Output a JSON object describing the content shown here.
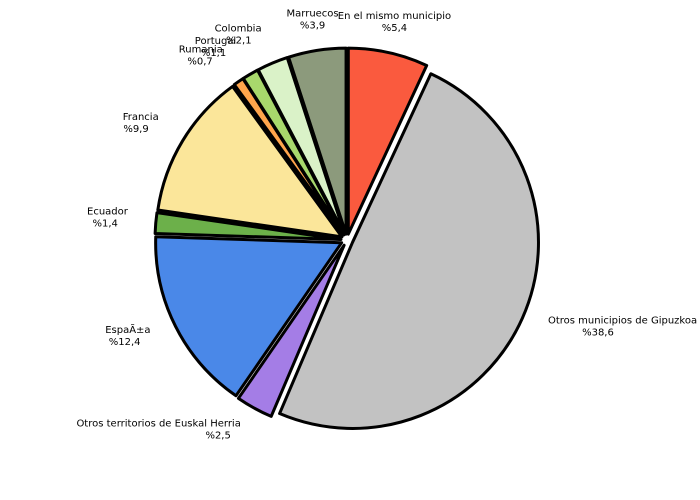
{
  "chart_data": {
    "type": "pie",
    "categories": [
      "En el mismo municipio",
      "Otros municipios de Gipuzkoa",
      "Otros territorios de Euskal Herria",
      "EspaÃ±a",
      "Ecuador",
      "Francia",
      "Rumania",
      "Portugal",
      "Colombia",
      "Marruecos"
    ],
    "values": [
      5.4,
      38.6,
      2.5,
      12.4,
      1.4,
      9.9,
      0.7,
      1.1,
      2.1,
      3.9
    ],
    "value_labels": [
      "%5,4",
      "%38,6",
      "%2,5",
      "%12,4",
      "%1,4",
      "%9,9",
      "%0,7",
      "%1,1",
      "%2,1",
      "%3,9"
    ],
    "colors": [
      "#fa5a3e",
      "#c2c2c2",
      "#a47de6",
      "#4a88e8",
      "#6cb04a",
      "#fbe69a",
      "#ffa54c",
      "#a8d86c",
      "#daf2c8",
      "#8c9a7c"
    ]
  }
}
